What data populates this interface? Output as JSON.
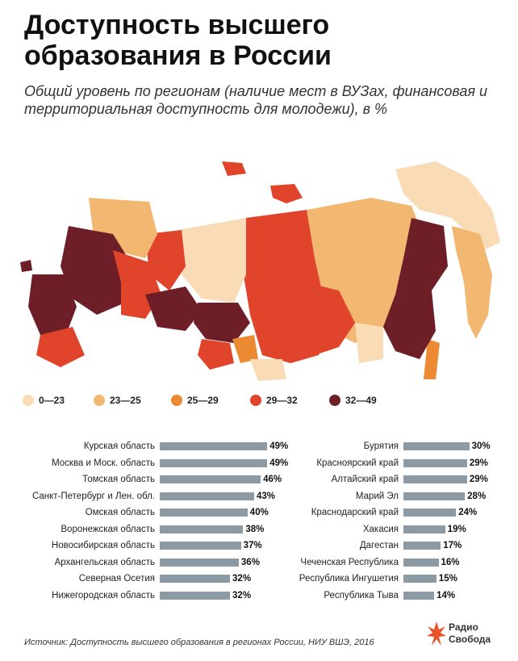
{
  "title": "Доступность высшего образования в России",
  "subtitle": "Общий уровень по регионам (наличие мест в ВУЗах, финансовая и территориальная доступность для молодежи), в %",
  "legend": [
    {
      "label": "0—23",
      "color": "#f9dcb6"
    },
    {
      "label": "23—25",
      "color": "#f2b872"
    },
    {
      "label": "25—29",
      "color": "#eb8a32"
    },
    {
      "label": "29—32",
      "color": "#e0452c"
    },
    {
      "label": "32—49",
      "color": "#6e1e26"
    }
  ],
  "chart_data": {
    "type": "bar",
    "unit": "%",
    "left_column": [
      {
        "name": "Курская область",
        "value": 49
      },
      {
        "name": "Москва и Моск. область",
        "value": 49
      },
      {
        "name": "Томская область",
        "value": 46
      },
      {
        "name": "Санкт-Петербург и Лен. обл.",
        "value": 43
      },
      {
        "name": "Омская область",
        "value": 40
      },
      {
        "name": "Воронежская область",
        "value": 38
      },
      {
        "name": "Новосибирская область",
        "value": 37
      },
      {
        "name": "Архангельская область",
        "value": 36
      },
      {
        "name": "Северная Осетия",
        "value": 32
      },
      {
        "name": "Нижегородская область",
        "value": 32
      }
    ],
    "right_column": [
      {
        "name": "Бурятия",
        "value": 30
      },
      {
        "name": "Красноярский край",
        "value": 29
      },
      {
        "name": "Алтайский край",
        "value": 29
      },
      {
        "name": "Марий Эл",
        "value": 28
      },
      {
        "name": "Краснодарский край",
        "value": 24
      },
      {
        "name": "Хакасия",
        "value": 19
      },
      {
        "name": "Дагестан",
        "value": 17
      },
      {
        "name": "Чеченская Республика",
        "value": 16
      },
      {
        "name": "Республика Ингушетия",
        "value": 15
      },
      {
        "name": "Республика Тыва",
        "value": 14
      }
    ],
    "bar_color": "#8c9aa3"
  },
  "source": "Источник: Доступность высшего образования в регионах России, НИУ ВШЭ, 2016",
  "logo": {
    "line1": "Радио",
    "line2": "Свобода",
    "color": "#e8542a"
  }
}
